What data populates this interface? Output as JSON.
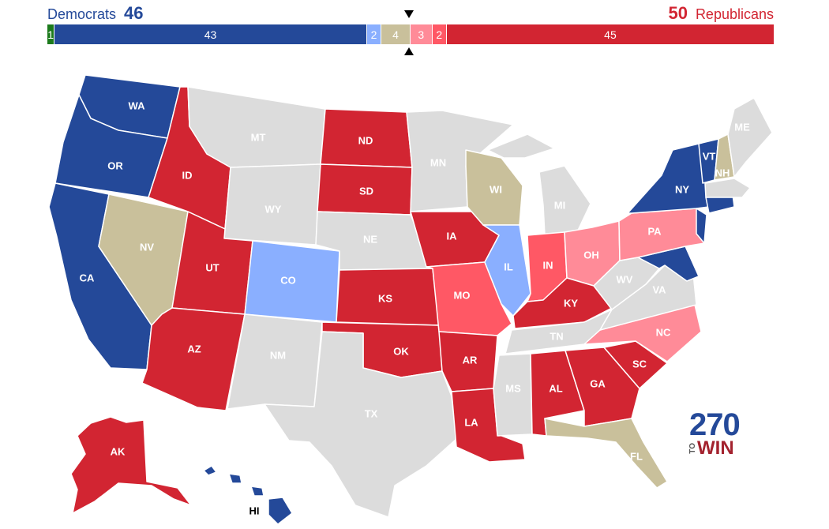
{
  "header": {
    "dem_label": "Democrats",
    "dem_total": "46",
    "rep_total": "50",
    "rep_label": "Republicans"
  },
  "bar": [
    {
      "key": "ind",
      "label": "1",
      "value": 1,
      "color": "#1c7a1c"
    },
    {
      "key": "safe_d",
      "label": "43",
      "value": 43,
      "color": "#244999"
    },
    {
      "key": "lean_d",
      "label": "2",
      "value": 2,
      "color": "#8aafff"
    },
    {
      "key": "tossup",
      "label": "4",
      "value": 4,
      "color": "#c9c09b"
    },
    {
      "key": "lean_r",
      "label": "3",
      "value": 3,
      "color": "#ff8b98"
    },
    {
      "key": "likely_r",
      "label": "2",
      "value": 2,
      "color": "#ff5865"
    },
    {
      "key": "safe_r",
      "label": "45",
      "value": 45,
      "color": "#d22532"
    }
  ],
  "colors": {
    "safe_d": "#244999",
    "lean_d": "#8aafff",
    "tossup": "#c9c09b",
    "lean_r": "#ff8b98",
    "likely_r": "#ff5865",
    "safe_r": "#d22532",
    "none": "#dcdcdc"
  },
  "states": {
    "WA": "WA",
    "OR": "OR",
    "CA": "CA",
    "NV": "NV",
    "ID": "ID",
    "MT": "MT",
    "WY": "WY",
    "UT": "UT",
    "AZ": "AZ",
    "CO": "CO",
    "NM": "NM",
    "ND": "ND",
    "SD": "SD",
    "NE": "NE",
    "KS": "KS",
    "OK": "OK",
    "TX": "TX",
    "MN": "MN",
    "IA": "IA",
    "MO": "MO",
    "AR": "AR",
    "LA": "LA",
    "WI": "WI",
    "IL": "IL",
    "MI": "MI",
    "IN": "IN",
    "OH": "OH",
    "KY": "KY",
    "TN": "TN",
    "MS": "MS",
    "AL": "AL",
    "GA": "GA",
    "FL": "FL",
    "SC": "SC",
    "NC": "NC",
    "VA": "VA",
    "WV": "WV",
    "PA": "PA",
    "NY": "NY",
    "VT": "VT",
    "NH": "NH",
    "ME": "ME",
    "AK": "AK",
    "HI": "HI"
  },
  "logo": {
    "num": "270",
    "to": "TO",
    "win": "WIN"
  }
}
